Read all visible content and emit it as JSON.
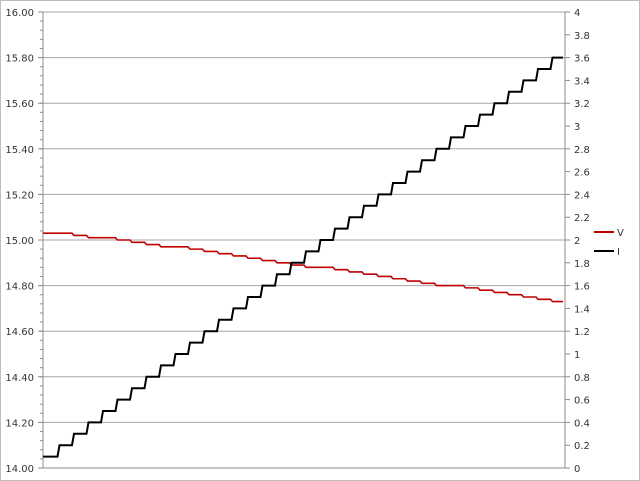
{
  "chart_data": {
    "type": "line",
    "title": "",
    "xlabel": "",
    "ylabel": "",
    "y_left": {
      "range": [
        14.0,
        16.0
      ],
      "major_step": 0.2,
      "minor_step": 0.04,
      "tick_labels": [
        "14.00",
        "14.20",
        "14.40",
        "14.60",
        "14.80",
        "15.00",
        "15.20",
        "15.40",
        "15.60",
        "15.80",
        "16.00"
      ]
    },
    "y_right": {
      "range": [
        0,
        4
      ],
      "major_step": 0.2,
      "tick_labels": [
        "0",
        "0.2",
        "0.4",
        "0.6",
        "0.8",
        "1",
        "1.2",
        "1.4",
        "1.6",
        "1.8",
        "2",
        "2.2",
        "2.4",
        "2.6",
        "2.8",
        "3",
        "3.2",
        "3.4",
        "3.6",
        "3.8",
        "4"
      ]
    },
    "grid": "horizontal major lines every 0.2 on left axis",
    "legend_position": "right",
    "x": [
      1,
      2,
      3,
      4,
      5,
      6,
      7,
      8,
      9,
      10,
      11,
      12,
      13,
      14,
      15,
      16,
      17,
      18,
      19,
      20,
      21,
      22,
      23,
      24,
      25,
      26,
      27,
      28,
      29,
      30,
      31,
      32,
      33,
      34,
      35,
      36
    ],
    "series": [
      {
        "name": "V",
        "axis": "left",
        "color": "#c00000",
        "style": "line",
        "values": [
          15.03,
          15.03,
          15.02,
          15.01,
          15.01,
          15.0,
          14.99,
          14.98,
          14.97,
          14.97,
          14.96,
          14.95,
          14.94,
          14.93,
          14.92,
          14.91,
          14.9,
          14.89,
          14.88,
          14.88,
          14.87,
          14.86,
          14.85,
          14.84,
          14.83,
          14.82,
          14.81,
          14.8,
          14.8,
          14.79,
          14.78,
          14.77,
          14.76,
          14.75,
          14.74,
          14.73
        ]
      },
      {
        "name": "I",
        "axis": "right",
        "color": "#000000",
        "style": "step",
        "values": [
          0.1,
          0.2,
          0.3,
          0.4,
          0.5,
          0.6,
          0.7,
          0.8,
          0.9,
          1.0,
          1.1,
          1.2,
          1.3,
          1.4,
          1.5,
          1.6,
          1.7,
          1.8,
          1.9,
          2.0,
          2.1,
          2.2,
          2.3,
          2.4,
          2.5,
          2.6,
          2.7,
          2.8,
          2.9,
          3.0,
          3.1,
          3.2,
          3.3,
          3.4,
          3.5,
          3.6
        ]
      }
    ]
  }
}
